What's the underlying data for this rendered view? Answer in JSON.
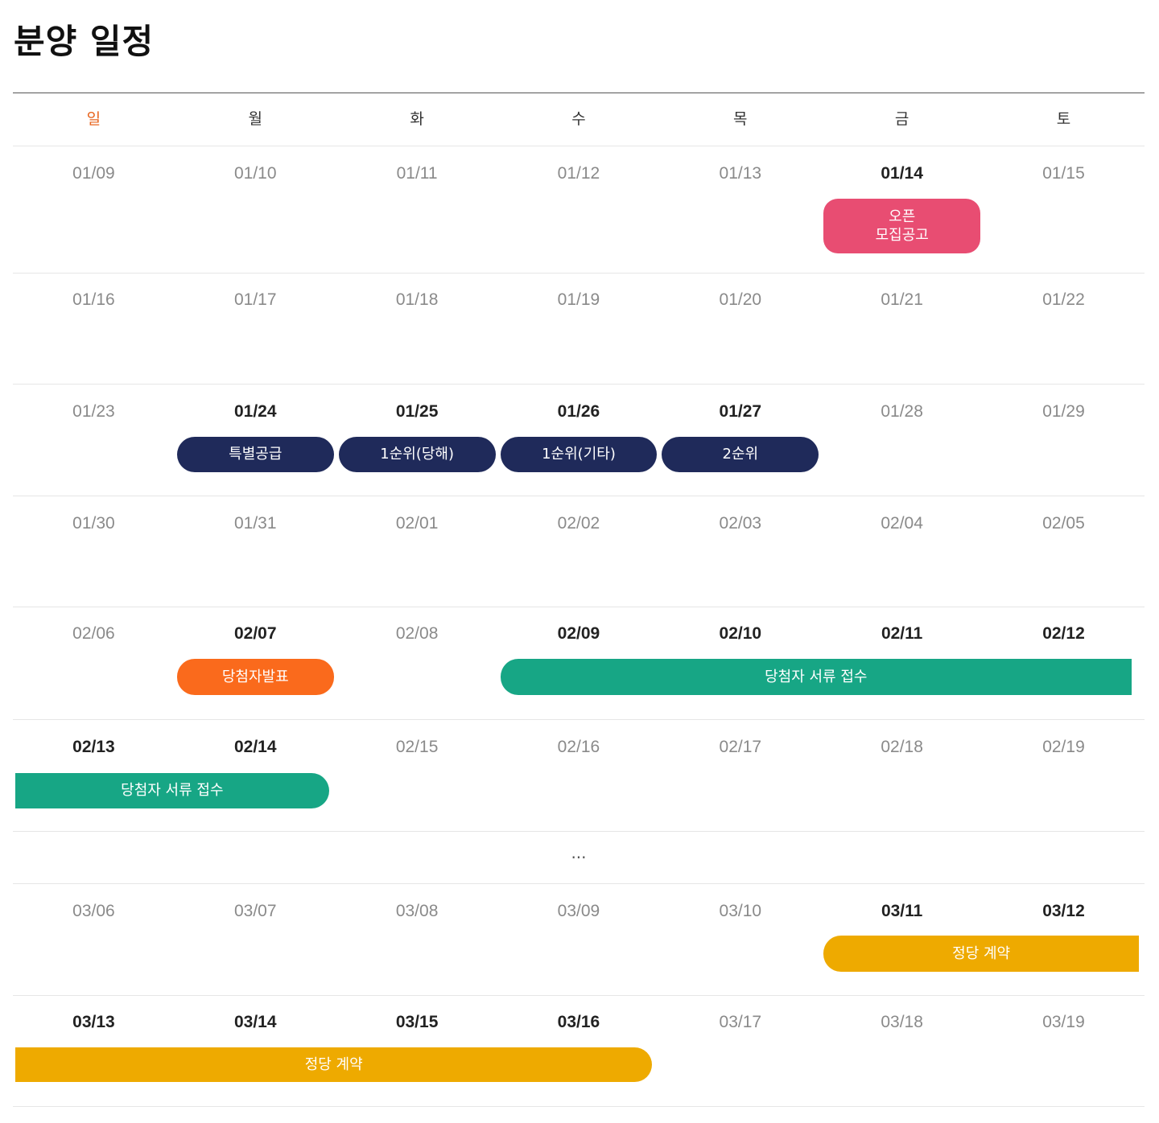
{
  "page_title": "분양 일정",
  "weekdays": [
    "일",
    "월",
    "화",
    "수",
    "목",
    "금",
    "토"
  ],
  "weeks": [
    {
      "dates": [
        "01/09",
        "01/10",
        "01/11",
        "01/12",
        "01/13",
        "01/14",
        "01/15"
      ],
      "active": [
        5
      ],
      "events": [
        {
          "label": "오픈\n모집공고",
          "start": 5,
          "span": 1,
          "color": "#e84d72",
          "shape": "pill-rounded"
        }
      ]
    },
    {
      "dates": [
        "01/16",
        "01/17",
        "01/18",
        "01/19",
        "01/20",
        "01/21",
        "01/22"
      ],
      "active": [],
      "events": []
    },
    {
      "dates": [
        "01/23",
        "01/24",
        "01/25",
        "01/26",
        "01/27",
        "01/28",
        "01/29"
      ],
      "active": [
        1,
        2,
        3,
        4
      ],
      "events": [
        {
          "label": "특별공급",
          "start": 1,
          "span": 1,
          "color": "#1f2a5a",
          "shape": "pill"
        },
        {
          "label": "1순위(당해)",
          "start": 2,
          "span": 1,
          "color": "#1f2a5a",
          "shape": "pill"
        },
        {
          "label": "1순위(기타)",
          "start": 3,
          "span": 1,
          "color": "#1f2a5a",
          "shape": "pill"
        },
        {
          "label": "2순위",
          "start": 4,
          "span": 1,
          "color": "#1f2a5a",
          "shape": "pill"
        }
      ]
    },
    {
      "dates": [
        "01/30",
        "01/31",
        "02/01",
        "02/02",
        "02/03",
        "02/04",
        "02/05"
      ],
      "active": [],
      "events": []
    },
    {
      "dates": [
        "02/06",
        "02/07",
        "02/08",
        "02/09",
        "02/10",
        "02/11",
        "02/12"
      ],
      "active": [
        1,
        3,
        4,
        5,
        6
      ],
      "events": [
        {
          "label": "당첨자발표",
          "start": 1,
          "span": 1,
          "color": "#fa6a1c",
          "shape": "pill"
        },
        {
          "label": "당첨자 서류 접수",
          "start": 3,
          "span": 4,
          "color": "#17a685",
          "shape": "start"
        }
      ]
    },
    {
      "dates": [
        "02/13",
        "02/14",
        "02/15",
        "02/16",
        "02/17",
        "02/18",
        "02/19"
      ],
      "active": [
        0,
        1
      ],
      "events": [
        {
          "label": "당첨자 서류 접수",
          "start": 0,
          "span": 2,
          "color": "#17a685",
          "shape": "end"
        }
      ]
    },
    {
      "ellipsis": "..."
    },
    {
      "dates": [
        "03/06",
        "03/07",
        "03/08",
        "03/09",
        "03/10",
        "03/11",
        "03/12"
      ],
      "active": [
        5,
        6
      ],
      "events": [
        {
          "label": "정당 계약",
          "start": 5,
          "span": 2,
          "color": "#eeaa00",
          "shape": "start"
        }
      ]
    },
    {
      "dates": [
        "03/13",
        "03/14",
        "03/15",
        "03/16",
        "03/17",
        "03/18",
        "03/19"
      ],
      "active": [
        0,
        1,
        2,
        3
      ],
      "events": [
        {
          "label": "정당 계약",
          "start": 0,
          "span": 4,
          "color": "#eeaa00",
          "shape": "end"
        }
      ]
    }
  ]
}
